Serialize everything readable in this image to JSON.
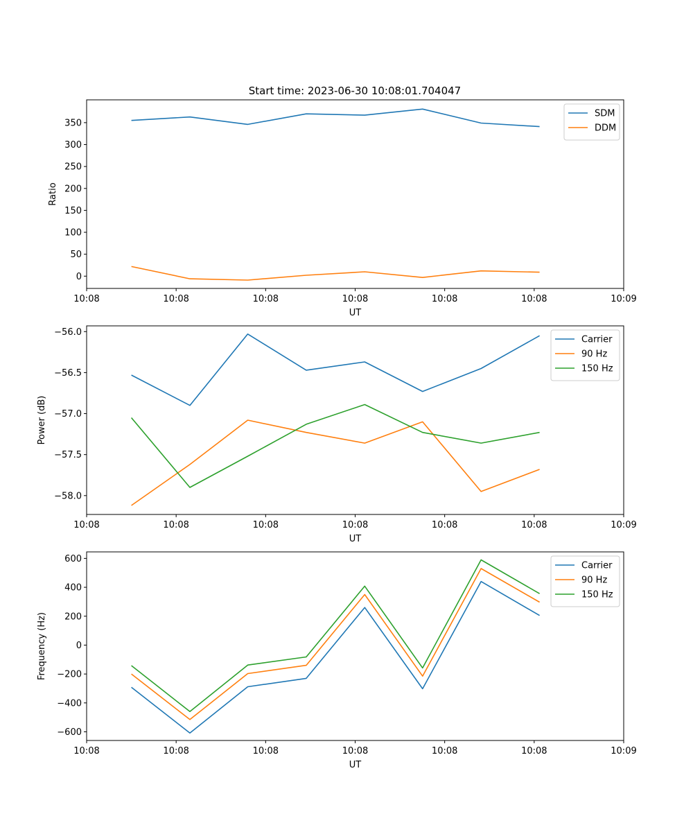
{
  "figure_title": "Start time: 2023-06-30 10:08:01.704047",
  "chart_data": [
    {
      "type": "line",
      "title": "Start time: 2023-06-30 10:08:01.704047",
      "xlabel": "UT",
      "ylabel": "Ratio",
      "xlim": [
        0,
        9
      ],
      "x_tick_values": [
        0,
        1.5,
        3,
        4.5,
        6,
        7.5,
        9
      ],
      "x_tick_labels": [
        "10:08",
        "10:08",
        "10:08",
        "10:08",
        "10:08",
        "10:08",
        "10:09"
      ],
      "ylim": [
        -28,
        402
      ],
      "y_tick_values": [
        0,
        50,
        100,
        150,
        200,
        250,
        300,
        350
      ],
      "y_tick_labels": [
        "0",
        "50",
        "100",
        "150",
        "200",
        "250",
        "300",
        "350"
      ],
      "x": [
        0.75,
        1.73,
        2.7,
        3.68,
        4.66,
        5.63,
        6.61,
        7.59
      ],
      "series": [
        {
          "name": "SDM",
          "color": "#1f77b4",
          "values": [
            355,
            363,
            346,
            370,
            367,
            381,
            349,
            341
          ]
        },
        {
          "name": "DDM",
          "color": "#ff7f0e",
          "values": [
            22,
            -6,
            -9,
            2,
            10,
            -3,
            12,
            9
          ]
        }
      ],
      "legend": "top-right",
      "grid": false
    },
    {
      "type": "line",
      "title": "",
      "xlabel": "UT",
      "ylabel": "Power (dB)",
      "xlim": [
        0,
        9
      ],
      "x_tick_values": [
        0,
        1.5,
        3,
        4.5,
        6,
        7.5,
        9
      ],
      "x_tick_labels": [
        "10:08",
        "10:08",
        "10:08",
        "10:08",
        "10:08",
        "10:08",
        "10:09"
      ],
      "ylim": [
        -58.23,
        -55.93
      ],
      "y_tick_values": [
        -58.0,
        -57.5,
        -57.0,
        -56.5,
        -56.0
      ],
      "y_tick_labels": [
        "−58.0",
        "−57.5",
        "−57.0",
        "−56.5",
        "−56.0"
      ],
      "x": [
        0.75,
        1.73,
        2.7,
        3.68,
        4.66,
        5.63,
        6.61,
        7.59
      ],
      "series": [
        {
          "name": "Carrier",
          "color": "#1f77b4",
          "values": [
            -56.53,
            -56.9,
            -56.03,
            -56.47,
            -56.37,
            -56.73,
            -56.45,
            -56.05
          ]
        },
        {
          "name": "90 Hz",
          "color": "#ff7f0e",
          "values": [
            -58.12,
            -57.62,
            -57.08,
            -57.23,
            -57.36,
            -57.1,
            -57.95,
            -57.68
          ]
        },
        {
          "name": "150 Hz",
          "color": "#2ca02c",
          "values": [
            -57.05,
            -57.9,
            -57.52,
            -57.13,
            -56.89,
            -57.23,
            -57.36,
            -57.23
          ]
        }
      ],
      "legend": "top-right",
      "grid": false
    },
    {
      "type": "line",
      "title": "",
      "xlabel": "UT",
      "ylabel": "Frequency (Hz)",
      "xlim": [
        0,
        9
      ],
      "x_tick_values": [
        0,
        1.5,
        3,
        4.5,
        6,
        7.5,
        9
      ],
      "x_tick_labels": [
        "10:08",
        "10:08",
        "10:08",
        "10:08",
        "10:08",
        "10:08",
        "10:09"
      ],
      "ylim": [
        -660,
        645
      ],
      "y_tick_values": [
        -600,
        -400,
        -200,
        0,
        200,
        400,
        600
      ],
      "y_tick_labels": [
        "−600",
        "−400",
        "−200",
        "0",
        "200",
        "400",
        "600"
      ],
      "x": [
        0.75,
        1.73,
        2.7,
        3.68,
        4.66,
        5.63,
        6.61,
        7.59
      ],
      "series": [
        {
          "name": "Carrier",
          "color": "#1f77b4",
          "values": [
            -292,
            -608,
            -288,
            -230,
            260,
            -302,
            440,
            205
          ]
        },
        {
          "name": "90 Hz",
          "color": "#ff7f0e",
          "values": [
            -200,
            -515,
            -197,
            -140,
            350,
            -215,
            530,
            297
          ]
        },
        {
          "name": "150 Hz",
          "color": "#2ca02c",
          "values": [
            -142,
            -460,
            -138,
            -82,
            408,
            -158,
            590,
            356
          ]
        }
      ],
      "legend": "top-right",
      "grid": false
    }
  ]
}
